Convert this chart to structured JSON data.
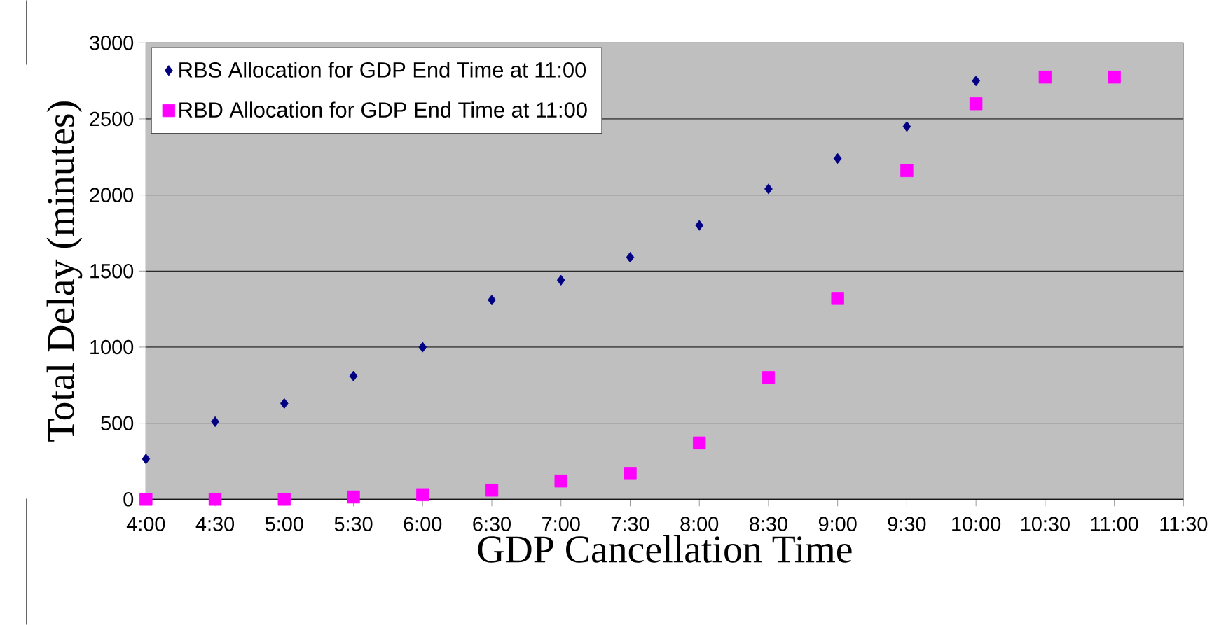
{
  "chart_data": {
    "type": "scatter",
    "xlabel": "GDP Cancellation Time",
    "ylabel": "Total Delay (minutes)",
    "x": [
      4,
      4.5,
      5,
      5.5,
      6,
      6.5,
      7,
      7.5,
      8,
      8.5,
      9,
      9.5,
      10,
      10.5,
      11
    ],
    "series": [
      {
        "name": "RBS Allocation for GDP End Time at 11:00",
        "color": "#000080",
        "marker": "diamond",
        "values": [
          265,
          510,
          630,
          810,
          1000,
          1310,
          1440,
          1590,
          1800,
          2040,
          2240,
          2450,
          2750,
          null,
          null
        ]
      },
      {
        "name": "RBD Allocation for GDP End Time at 11:00",
        "color": "#ff00ff",
        "marker": "square",
        "values": [
          0,
          0,
          0,
          15,
          30,
          60,
          120,
          170,
          370,
          800,
          1320,
          2160,
          2600,
          2775,
          2775
        ]
      }
    ],
    "xlim": [
      4,
      11.5
    ],
    "ylim": [
      0,
      3000
    ],
    "xticks": [
      {
        "value": 4,
        "label": "4:00"
      },
      {
        "value": 4.5,
        "label": "4:30"
      },
      {
        "value": 5,
        "label": "5:00"
      },
      {
        "value": 5.5,
        "label": "5:30"
      },
      {
        "value": 6,
        "label": "6:00"
      },
      {
        "value": 6.5,
        "label": "6:30"
      },
      {
        "value": 7,
        "label": "7:00"
      },
      {
        "value": 7.5,
        "label": "7:30"
      },
      {
        "value": 8,
        "label": "8:00"
      },
      {
        "value": 8.5,
        "label": "8:30"
      },
      {
        "value": 9,
        "label": "9:00"
      },
      {
        "value": 9.5,
        "label": "9:30"
      },
      {
        "value": 10,
        "label": "10:00"
      },
      {
        "value": 10.5,
        "label": "10:30"
      },
      {
        "value": 11,
        "label": "11:00"
      },
      {
        "value": 11.5,
        "label": "11:30"
      }
    ],
    "yticks": [
      0,
      500,
      1000,
      1500,
      2000,
      2500,
      3000
    ],
    "grid": "y",
    "legend": "top left"
  }
}
